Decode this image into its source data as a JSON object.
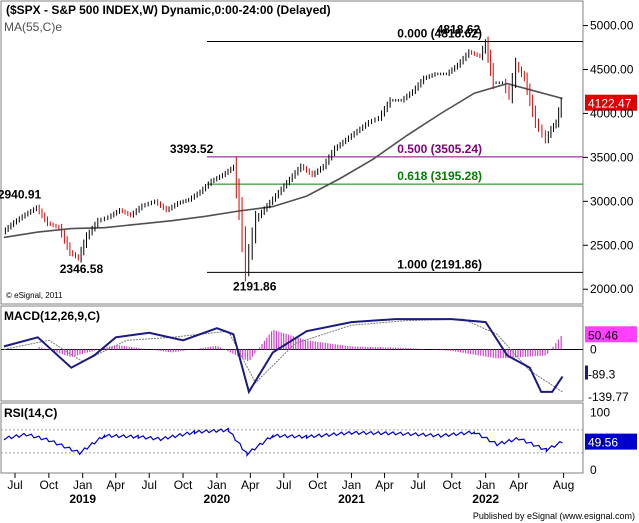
{
  "chart_data": {
    "type": "line",
    "title": "($SPX - S&P 500 INDEX,W) Dynamic,0:00-24:00 (Delayed)",
    "source": "© eSignal, 2011",
    "credit": "Published by eSignal (www.esignal.com)",
    "x_ticks": [
      "Jul",
      "Oct",
      "Jan",
      "Apr",
      "Jul",
      "Oct",
      "Jan",
      "Apr",
      "Jul",
      "Oct",
      "Jan",
      "Apr",
      "Jul",
      "Oct",
      "Jan",
      "Apr",
      "Aug"
    ],
    "x_years": [
      "2019",
      "2020",
      "2021",
      "2022"
    ],
    "price": {
      "ylim": [
        1900,
        5200
      ],
      "y_ticks": [
        "5000.00",
        "4500.00",
        "4000.00",
        "3500.00",
        "3000.00",
        "2500.00",
        "2000.00"
      ],
      "last_value": "4122.47",
      "ma_label": "MA(55,C)e",
      "points": [
        [
          "2018-06-01",
          2650
        ],
        [
          "2018-07-01",
          2760
        ],
        [
          "2018-08-01",
          2850
        ],
        [
          "2018-09-01",
          2930
        ],
        [
          "2018-10-01",
          2750
        ],
        [
          "2018-11-01",
          2700
        ],
        [
          "2018-12-01",
          2420
        ],
        [
          "2018-12-24",
          2351
        ],
        [
          "2019-01-15",
          2600
        ],
        [
          "2019-02-15",
          2780
        ],
        [
          "2019-03-15",
          2820
        ],
        [
          "2019-04-15",
          2900
        ],
        [
          "2019-05-15",
          2840
        ],
        [
          "2019-06-15",
          2950
        ],
        [
          "2019-07-20",
          3000
        ],
        [
          "2019-08-20",
          2900
        ],
        [
          "2019-09-20",
          2980
        ],
        [
          "2019-10-20",
          3020
        ],
        [
          "2019-11-20",
          3110
        ],
        [
          "2019-12-20",
          3230
        ],
        [
          "2020-01-20",
          3300
        ],
        [
          "2020-02-19",
          3393
        ],
        [
          "2020-03-05",
          2900
        ],
        [
          "2020-03-23",
          2237
        ],
        [
          "2020-04-20",
          2800
        ],
        [
          "2020-05-20",
          2950
        ],
        [
          "2020-06-20",
          3100
        ],
        [
          "2020-07-20",
          3250
        ],
        [
          "2020-08-20",
          3400
        ],
        [
          "2020-09-20",
          3300
        ],
        [
          "2020-10-20",
          3400
        ],
        [
          "2020-11-20",
          3600
        ],
        [
          "2020-12-20",
          3700
        ],
        [
          "2021-01-20",
          3800
        ],
        [
          "2021-02-20",
          3900
        ],
        [
          "2021-03-20",
          3950
        ],
        [
          "2021-04-20",
          4150
        ],
        [
          "2021-05-20",
          4150
        ],
        [
          "2021-06-20",
          4250
        ],
        [
          "2021-07-20",
          4400
        ],
        [
          "2021-08-20",
          4450
        ],
        [
          "2021-09-20",
          4450
        ],
        [
          "2021-10-20",
          4550
        ],
        [
          "2021-11-20",
          4700
        ],
        [
          "2021-12-20",
          4650
        ],
        [
          "2022-01-04",
          4800
        ],
        [
          "2022-01-25",
          4350
        ],
        [
          "2022-02-20",
          4350
        ],
        [
          "2022-03-10",
          4200
        ],
        [
          "2022-03-28",
          4550
        ],
        [
          "2022-04-20",
          4400
        ],
        [
          "2022-05-20",
          3900
        ],
        [
          "2022-06-17",
          3700
        ],
        [
          "2022-07-01",
          3820
        ],
        [
          "2022-07-15",
          3900
        ],
        [
          "2022-07-29",
          4122
        ]
      ],
      "ma_points": [
        [
          "2018-06-01",
          2590
        ],
        [
          "2018-09-01",
          2650
        ],
        [
          "2018-12-01",
          2690
        ],
        [
          "2019-03-01",
          2700
        ],
        [
          "2019-06-01",
          2740
        ],
        [
          "2019-09-01",
          2780
        ],
        [
          "2019-12-01",
          2830
        ],
        [
          "2020-03-01",
          2890
        ],
        [
          "2020-06-01",
          2940
        ],
        [
          "2020-09-01",
          3060
        ],
        [
          "2020-12-01",
          3260
        ],
        [
          "2021-03-01",
          3480
        ],
        [
          "2021-06-01",
          3750
        ],
        [
          "2021-09-01",
          4000
        ],
        [
          "2021-12-01",
          4230
        ],
        [
          "2022-03-01",
          4340
        ],
        [
          "2022-05-01",
          4270
        ],
        [
          "2022-07-29",
          4170
        ]
      ],
      "annotations": [
        {
          "text": "2940.91",
          "date": "2018-09-01",
          "value": 2940.91
        },
        {
          "text": "2346.58",
          "date": "2018-12-24",
          "value": 2346.58
        },
        {
          "text": "3393.52",
          "date": "2020-02-19",
          "value": 3393.52
        },
        {
          "text": "2191.86",
          "date": "2020-03-23",
          "value": 2191.86
        },
        {
          "text": "4818.62",
          "date": "2022-01-04",
          "value": 4818.62
        }
      ],
      "fib_levels": [
        {
          "label": "0.000 (4818.62)",
          "value": 4818.62,
          "color": "#000000"
        },
        {
          "label": "0.500 (3505.24)",
          "value": 3505.24,
          "color": "#800080"
        },
        {
          "label": "0.618 (3195.28)",
          "value": 3195.28,
          "color": "#008000"
        },
        {
          "label": "1.000 (2191.86)",
          "value": 2191.86,
          "color": "#000000"
        }
      ]
    },
    "macd": {
      "label": "MACD(12,26,9,C)",
      "ylim": [
        -160,
        130
      ],
      "zero_label": "0",
      "values": {
        "hist": "50.46",
        "macd": "-89.3",
        "signal": "-139.77"
      },
      "macd_points": [
        [
          "2018-06-01",
          10
        ],
        [
          "2018-09-01",
          40
        ],
        [
          "2018-12-01",
          -60
        ],
        [
          "2019-02-01",
          -20
        ],
        [
          "2019-04-01",
          40
        ],
        [
          "2019-07-01",
          55
        ],
        [
          "2019-10-01",
          30
        ],
        [
          "2020-01-01",
          70
        ],
        [
          "2020-02-15",
          50
        ],
        [
          "2020-03-28",
          -140
        ],
        [
          "2020-06-01",
          -10
        ],
        [
          "2020-09-01",
          60
        ],
        [
          "2021-01-01",
          90
        ],
        [
          "2021-05-01",
          100
        ],
        [
          "2021-10-01",
          100
        ],
        [
          "2022-01-01",
          90
        ],
        [
          "2022-03-01",
          -20
        ],
        [
          "2022-05-01",
          -60
        ],
        [
          "2022-06-01",
          -140
        ],
        [
          "2022-07-01",
          -140
        ],
        [
          "2022-07-29",
          -89
        ]
      ],
      "signal_points": [
        [
          "2018-06-01",
          0
        ],
        [
          "2018-10-01",
          30
        ],
        [
          "2019-01-01",
          -40
        ],
        [
          "2019-05-01",
          30
        ],
        [
          "2019-09-01",
          40
        ],
        [
          "2020-02-01",
          60
        ],
        [
          "2020-04-15",
          -110
        ],
        [
          "2020-08-01",
          20
        ],
        [
          "2021-01-01",
          80
        ],
        [
          "2021-06-01",
          95
        ],
        [
          "2021-11-01",
          100
        ],
        [
          "2022-02-01",
          50
        ],
        [
          "2022-05-01",
          -70
        ],
        [
          "2022-07-29",
          -140
        ]
      ],
      "hist_points": [
        [
          "2018-09-01",
          10
        ],
        [
          "2018-12-01",
          -25
        ],
        [
          "2019-04-01",
          15
        ],
        [
          "2019-09-01",
          -10
        ],
        [
          "2020-01-01",
          12
        ],
        [
          "2020-03-28",
          -40
        ],
        [
          "2020-06-01",
          65
        ],
        [
          "2020-09-01",
          30
        ],
        [
          "2021-01-01",
          10
        ],
        [
          "2021-06-01",
          5
        ],
        [
          "2021-10-01",
          -5
        ],
        [
          "2022-02-01",
          -30
        ],
        [
          "2022-06-15",
          -20
        ],
        [
          "2022-07-29",
          50
        ]
      ]
    },
    "rsi": {
      "label": "RSI(14,C)",
      "ylim": [
        0,
        110
      ],
      "y_ticks": [
        "100",
        "50",
        "0"
      ],
      "last_value": "49.56",
      "points": [
        [
          "2018-06-01",
          55
        ],
        [
          "2018-08-01",
          62
        ],
        [
          "2018-10-01",
          52
        ],
        [
          "2018-12-24",
          30
        ],
        [
          "2019-03-01",
          60
        ],
        [
          "2019-06-01",
          58
        ],
        [
          "2019-08-01",
          54
        ],
        [
          "2019-11-01",
          66
        ],
        [
          "2020-02-01",
          70
        ],
        [
          "2020-03-23",
          28
        ],
        [
          "2020-06-01",
          60
        ],
        [
          "2020-09-01",
          58
        ],
        [
          "2021-01-01",
          65
        ],
        [
          "2021-05-01",
          64
        ],
        [
          "2021-09-01",
          60
        ],
        [
          "2021-12-01",
          66
        ],
        [
          "2022-02-01",
          45
        ],
        [
          "2022-04-01",
          55
        ],
        [
          "2022-06-15",
          35
        ],
        [
          "2022-07-29",
          49.56
        ]
      ]
    }
  }
}
